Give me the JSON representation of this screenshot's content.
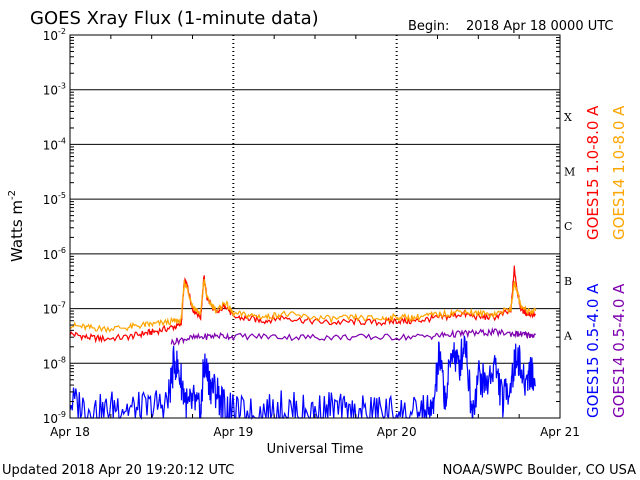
{
  "header": {
    "title": "GOES Xray Flux (1-minute data)",
    "begin_label": "Begin:",
    "begin_value": "2018 Apr 18 0000 UTC"
  },
  "footer": {
    "updated": "Updated 2018 Apr 20 19:20:12 UTC",
    "credit": "NOAA/SWPC Boulder, CO USA"
  },
  "colors": {
    "goes15_long": "#ff0000",
    "goes14_long": "#ffa500",
    "goes15_short": "#0000ff",
    "goes14_short": "#7f00b0"
  },
  "chart_data": {
    "type": "line",
    "title": "GOES Xray Flux (1-minute data)",
    "xlabel": "Universal Time",
    "ylabel": "Watts m",
    "ylabel_exp": "-2",
    "y_scale": "log",
    "ylim": [
      1e-09,
      0.01
    ],
    "y_ticks": [
      {
        "value": 0.01,
        "base": "10",
        "exp": "-2"
      },
      {
        "value": 0.001,
        "base": "10",
        "exp": "-3"
      },
      {
        "value": 0.0001,
        "base": "10",
        "exp": "-4"
      },
      {
        "value": 1e-05,
        "base": "10",
        "exp": "-5"
      },
      {
        "value": 1e-06,
        "base": "10",
        "exp": "-6"
      },
      {
        "value": 1e-07,
        "base": "10",
        "exp": "-7"
      },
      {
        "value": 1e-08,
        "base": "10",
        "exp": "-8"
      },
      {
        "value": 1e-09,
        "base": "10",
        "exp": "-9"
      }
    ],
    "x_ticks": [
      "Apr 18",
      "Apr 19",
      "Apr 20",
      "Apr 21"
    ],
    "xlim": [
      "2018-04-18",
      "2018-04-21"
    ],
    "flare_classes": [
      {
        "label": "X",
        "value": 0.00032
      },
      {
        "label": "M",
        "value": 3.2e-05
      },
      {
        "label": "C",
        "value": 3.2e-06
      },
      {
        "label": "B",
        "value": 3.2e-07
      },
      {
        "label": "A",
        "value": 3.2e-08
      }
    ],
    "grid": true,
    "legend_position": "right",
    "series": [
      {
        "name": "GOES15 1.0-8.0 A",
        "color": "#ff0000",
        "x_days": [
          0,
          0.1,
          0.2,
          0.35,
          0.45,
          0.52,
          0.62,
          0.68,
          0.7,
          0.72,
          0.75,
          0.8,
          0.82,
          0.84,
          0.9,
          0.95,
          1.0,
          1.1,
          1.2,
          1.3,
          1.45,
          1.6,
          1.75,
          1.9,
          2.0,
          2.1,
          2.2,
          2.3,
          2.4,
          2.5,
          2.6,
          2.7,
          2.72,
          2.74,
          2.76,
          2.8,
          2.85
        ],
        "y": [
          3.5e-08,
          3e-08,
          2.8e-08,
          3e-08,
          3.5e-08,
          3.8e-08,
          4.5e-08,
          5e-08,
          3.2e-07,
          2.5e-07,
          1e-07,
          7e-08,
          3.8e-07,
          1.5e-07,
          8e-08,
          1.2e-07,
          7e-08,
          6.5e-08,
          6e-08,
          7e-08,
          6e-08,
          5.5e-08,
          5.8e-08,
          5.5e-08,
          6e-08,
          5.8e-08,
          6.5e-08,
          7e-08,
          8e-08,
          7e-08,
          7e-08,
          9e-08,
          5.5e-07,
          2e-07,
          1e-07,
          8e-08,
          8e-08
        ]
      },
      {
        "name": "GOES14 1.0-8.0 A",
        "color": "#ffa500",
        "x_days": [
          0,
          0.1,
          0.2,
          0.35,
          0.45,
          0.52,
          0.62,
          0.68,
          0.7,
          0.72,
          0.75,
          0.8,
          0.82,
          0.84,
          0.9,
          0.95,
          1.0,
          1.1,
          1.2,
          1.3,
          1.45,
          1.6,
          1.75,
          1.9,
          2.0,
          2.1,
          2.2,
          2.3,
          2.4,
          2.5,
          2.6,
          2.7,
          2.72,
          2.74,
          2.76,
          2.8,
          2.85
        ],
        "y": [
          5e-08,
          4.5e-08,
          4.3e-08,
          4.5e-08,
          5e-08,
          5.2e-08,
          5.8e-08,
          6e-08,
          3e-07,
          2.3e-07,
          1.1e-07,
          8e-08,
          3.5e-07,
          1.5e-07,
          9e-08,
          1.3e-07,
          8e-08,
          7.5e-08,
          7e-08,
          8e-08,
          7e-08,
          6.5e-08,
          6.8e-08,
          6.5e-08,
          7e-08,
          6.8e-08,
          7.5e-08,
          8e-08,
          9e-08,
          8e-08,
          8e-08,
          1e-07,
          3e-07,
          2e-07,
          1.1e-07,
          9e-08,
          9e-08
        ]
      },
      {
        "name": "GOES15 0.5-4.0 A",
        "color": "#0000ff",
        "x_days": [
          0,
          0.1,
          0.2,
          0.3,
          0.4,
          0.5,
          0.6,
          0.64,
          0.68,
          0.72,
          0.76,
          0.8,
          0.82,
          0.86,
          0.9,
          0.95,
          1.0,
          1.1,
          1.2,
          1.3,
          1.4,
          1.5,
          1.6,
          1.7,
          1.8,
          1.9,
          2.0,
          2.1,
          2.18,
          2.22,
          2.26,
          2.3,
          2.34,
          2.38,
          2.42,
          2.46,
          2.5,
          2.55,
          2.6,
          2.65,
          2.7,
          2.74,
          2.78,
          2.82,
          2.85
        ],
        "y": [
          2e-09,
          1.5e-09,
          1.2e-09,
          1.8e-09,
          1.3e-09,
          1.5e-09,
          2e-09,
          1.2e-08,
          5e-09,
          1.5e-09,
          2e-09,
          1.1e-09,
          1e-08,
          4e-09,
          3e-09,
          1.5e-09,
          1.2e-09,
          1.1e-09,
          1.2e-09,
          1.5e-09,
          1.3e-09,
          1.2e-09,
          1.5e-09,
          1.1e-09,
          1.2e-09,
          1.3e-09,
          1.2e-09,
          1.1e-09,
          1.3e-09,
          1.2e-09,
          1.4e-08,
          2e-09,
          2e-08,
          8e-09,
          3e-08,
          1.2e-09,
          6e-09,
          4e-09,
          1e-08,
          2e-09,
          5e-09,
          1.5e-08,
          4e-09,
          8e-09,
          4e-09
        ]
      },
      {
        "name": "GOES14 0.5-4.0 A",
        "color": "#7f00b0",
        "x_days": [
          0.62,
          0.7,
          0.8,
          0.9,
          1.0,
          1.2,
          1.4,
          1.6,
          1.8,
          2.0,
          2.2,
          2.3,
          2.4,
          2.5,
          2.6,
          2.7,
          2.76,
          2.8,
          2.85
        ],
        "y": [
          2.4e-08,
          2.8e-08,
          3e-08,
          3.2e-08,
          3.1e-08,
          3.1e-08,
          3e-08,
          3e-08,
          3e-08,
          3e-08,
          3.1e-08,
          3.3e-08,
          3.5e-08,
          3.6e-08,
          3.7e-08,
          3.5e-08,
          3.4e-08,
          3.3e-08,
          3.3e-08
        ]
      }
    ]
  }
}
